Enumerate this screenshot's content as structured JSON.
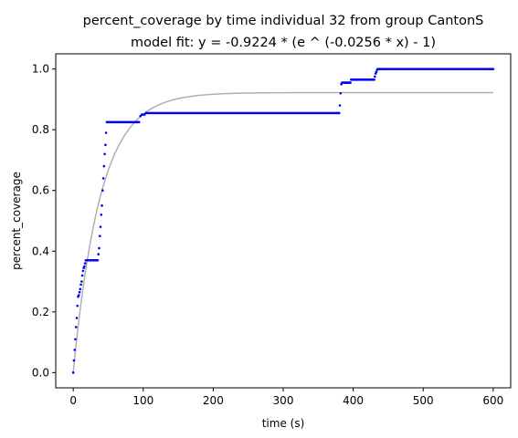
{
  "chart_data": {
    "type": "scatter",
    "title": "percent_coverage by time individual 32 from group CantonS",
    "subtitle": "model fit: y = -0.9224 * (e ^ (-0.0256 * x) - 1)",
    "xlabel": "time (s)",
    "ylabel": "percent_coverage",
    "xlim": [
      -25,
      625
    ],
    "ylim": [
      -0.05,
      1.05
    ],
    "xticks": [
      0,
      100,
      200,
      300,
      400,
      500,
      600
    ],
    "yticks": [
      0.0,
      0.2,
      0.4,
      0.6,
      0.8,
      1.0
    ],
    "ytick_labels": [
      "0.0",
      "0.2",
      "0.4",
      "0.6",
      "0.8",
      "1.0"
    ],
    "grid": false,
    "legend": "none",
    "series": [
      {
        "kind": "points",
        "color": "#0000ff",
        "steps": [
          [
            0,
            0.0
          ],
          [
            1,
            0.04
          ],
          [
            2,
            0.075
          ],
          [
            3,
            0.11
          ],
          [
            4,
            0.15
          ],
          [
            5,
            0.18
          ],
          [
            6,
            0.22
          ],
          [
            7,
            0.25
          ],
          [
            8,
            0.255
          ],
          [
            9,
            0.265
          ],
          [
            10,
            0.275
          ],
          [
            11,
            0.29
          ],
          [
            12,
            0.3
          ],
          [
            13,
            0.32
          ],
          [
            14,
            0.335
          ],
          [
            15,
            0.345
          ],
          [
            16,
            0.35
          ],
          [
            17,
            0.36
          ],
          [
            18,
            0.37
          ],
          [
            35,
            0.37
          ],
          [
            36,
            0.39
          ],
          [
            37,
            0.41
          ],
          [
            38,
            0.45
          ],
          [
            39,
            0.48
          ],
          [
            40,
            0.52
          ],
          [
            41,
            0.55
          ],
          [
            42,
            0.6
          ],
          [
            43,
            0.64
          ],
          [
            44,
            0.68
          ],
          [
            45,
            0.72
          ],
          [
            46,
            0.75
          ],
          [
            47,
            0.79
          ],
          [
            48,
            0.825
          ],
          [
            95,
            0.825
          ],
          [
            96,
            0.845
          ],
          [
            97,
            0.85
          ],
          [
            103,
            0.85
          ],
          [
            104,
            0.855
          ],
          [
            380,
            0.855
          ],
          [
            381,
            0.88
          ],
          [
            382,
            0.92
          ],
          [
            383,
            0.95
          ],
          [
            384,
            0.955
          ],
          [
            396,
            0.955
          ],
          [
            397,
            0.965
          ],
          [
            430,
            0.965
          ],
          [
            431,
            0.975
          ],
          [
            432,
            0.985
          ],
          [
            433,
            0.99
          ],
          [
            434,
            0.997
          ],
          [
            435,
            1.0
          ],
          [
            600,
            1.0
          ]
        ],
        "sample_step": 2
      },
      {
        "kind": "fit-line",
        "color": "#b0b0b0",
        "a": 0.9224,
        "k": 0.0256,
        "x_range": [
          0,
          600
        ]
      }
    ]
  }
}
